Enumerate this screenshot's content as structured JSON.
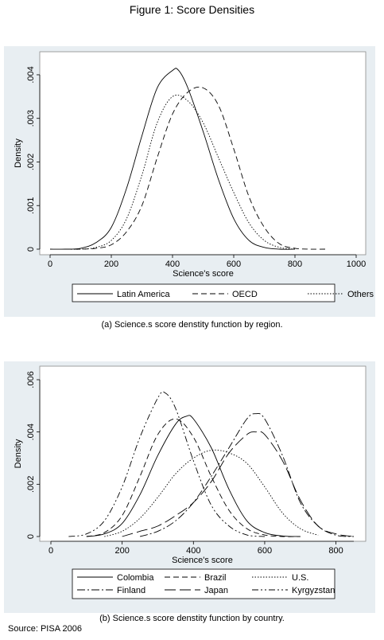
{
  "figure_title": "Figure 1: Score Densities",
  "source": "Source: PISA 2006",
  "chart_data": [
    {
      "type": "line",
      "caption": "(a)    Science.s score denstity function by region.",
      "xlabel": "Science's score",
      "ylabel": "Density",
      "xlim": [
        0,
        1000
      ],
      "ylim": [
        0,
        0.0042
      ],
      "x_ticks": [
        0,
        200,
        400,
        600,
        800,
        1000
      ],
      "x_tick_labels": [
        "0",
        "200",
        "400",
        "600",
        "800",
        "1000"
      ],
      "y_ticks": [
        0,
        0.001,
        0.002,
        0.003,
        0.004
      ],
      "y_tick_labels": [
        "0",
        ".001",
        ".002",
        ".003",
        ".004"
      ],
      "legend_position": "bottom",
      "series": [
        {
          "name": "Latin America",
          "dash": "solid",
          "x": [
            0,
            50,
            100,
            150,
            200,
            250,
            300,
            350,
            400,
            420,
            450,
            500,
            550,
            600,
            650,
            700,
            750,
            800
          ],
          "y": [
            0,
            0,
            2e-05,
            0.00015,
            0.0005,
            0.0014,
            0.0026,
            0.0037,
            0.0041,
            0.0041,
            0.0037,
            0.0027,
            0.0016,
            0.0007,
            0.0002,
            4e-05,
            0,
            0
          ]
        },
        {
          "name": "OECD",
          "dash": "dashed",
          "x": [
            50,
            100,
            150,
            200,
            250,
            300,
            350,
            400,
            450,
            500,
            550,
            600,
            650,
            700,
            750,
            800,
            850,
            900
          ],
          "y": [
            0,
            0,
            2e-05,
            0.0001,
            0.0004,
            0.001,
            0.0021,
            0.0031,
            0.0036,
            0.0037,
            0.0033,
            0.0023,
            0.0012,
            0.0005,
            0.00012,
            2e-05,
            0,
            0
          ]
        },
        {
          "name": "Others",
          "dash": "dotted",
          "x": [
            50,
            100,
            150,
            200,
            250,
            300,
            350,
            400,
            450,
            500,
            550,
            600,
            650,
            700,
            750,
            800
          ],
          "y": [
            0,
            0,
            4e-05,
            0.0002,
            0.0007,
            0.0017,
            0.0029,
            0.0035,
            0.0034,
            0.0029,
            0.0021,
            0.0013,
            0.0006,
            0.0002,
            4e-05,
            0
          ]
        }
      ]
    },
    {
      "type": "line",
      "caption": "(b) Science.s score denstity function by country.",
      "xlabel": "Science's score",
      "ylabel": "Density",
      "xlim": [
        0,
        850
      ],
      "ylim": [
        0,
        0.006
      ],
      "x_ticks": [
        0,
        200,
        400,
        600,
        800
      ],
      "x_tick_labels": [
        "0",
        "200",
        "400",
        "600",
        "800"
      ],
      "y_ticks": [
        0,
        0.002,
        0.004,
        0.006
      ],
      "y_tick_labels": [
        "0",
        ".002",
        ".004",
        ".006"
      ],
      "legend_position": "bottom",
      "series": [
        {
          "name": "Colombia",
          "dash": "solid",
          "x": [
            100,
            150,
            200,
            250,
            300,
            350,
            380,
            400,
            450,
            500,
            550,
            600,
            650,
            700
          ],
          "y": [
            0,
            0.0001,
            0.0005,
            0.0016,
            0.0031,
            0.0043,
            0.0046,
            0.0045,
            0.0034,
            0.0018,
            0.0006,
            0.00015,
            2e-05,
            0
          ]
        },
        {
          "name": "Brazil",
          "dash": "dashed",
          "x": [
            100,
            150,
            200,
            250,
            300,
            350,
            400,
            450,
            500,
            550,
            600,
            650,
            700
          ],
          "y": [
            0,
            0.00015,
            0.0008,
            0.0023,
            0.0039,
            0.0045,
            0.0038,
            0.0023,
            0.001,
            0.0003,
            6e-05,
            0,
            0
          ]
        },
        {
          "name": "U.S.",
          "dash": "dotted",
          "x": [
            150,
            200,
            250,
            300,
            350,
            400,
            450,
            500,
            550,
            600,
            650,
            700,
            750
          ],
          "y": [
            0,
            0.0002,
            0.0007,
            0.0015,
            0.0024,
            0.003,
            0.0033,
            0.0032,
            0.0028,
            0.0019,
            0.0009,
            0.0003,
            5e-05
          ]
        },
        {
          "name": "Finland",
          "dash": "dashdot",
          "x": [
            250,
            300,
            350,
            400,
            450,
            500,
            550,
            575,
            600,
            650,
            700,
            750,
            800,
            850
          ],
          "y": [
            0,
            0.0002,
            0.0006,
            0.0013,
            0.0023,
            0.0034,
            0.0045,
            0.0047,
            0.0045,
            0.0031,
            0.0013,
            0.0004,
            5e-05,
            0
          ]
        },
        {
          "name": "Japan",
          "dash": "longdash",
          "x": [
            200,
            250,
            300,
            350,
            400,
            450,
            500,
            550,
            575,
            600,
            650,
            700,
            750,
            800,
            850
          ],
          "y": [
            0,
            0.0002,
            0.0004,
            0.0008,
            0.0013,
            0.0021,
            0.0032,
            0.0039,
            0.004,
            0.0039,
            0.0029,
            0.0014,
            0.0004,
            0.0001,
            0
          ]
        },
        {
          "name": "Kyrgyzstan",
          "dash": "dashdotdot",
          "x": [
            50,
            100,
            150,
            200,
            250,
            300,
            320,
            350,
            400,
            450,
            500,
            550,
            600
          ],
          "y": [
            0,
            0.0001,
            0.0006,
            0.0019,
            0.0038,
            0.0053,
            0.0055,
            0.0049,
            0.0029,
            0.0012,
            0.0004,
            6e-05,
            0
          ]
        }
      ]
    }
  ]
}
